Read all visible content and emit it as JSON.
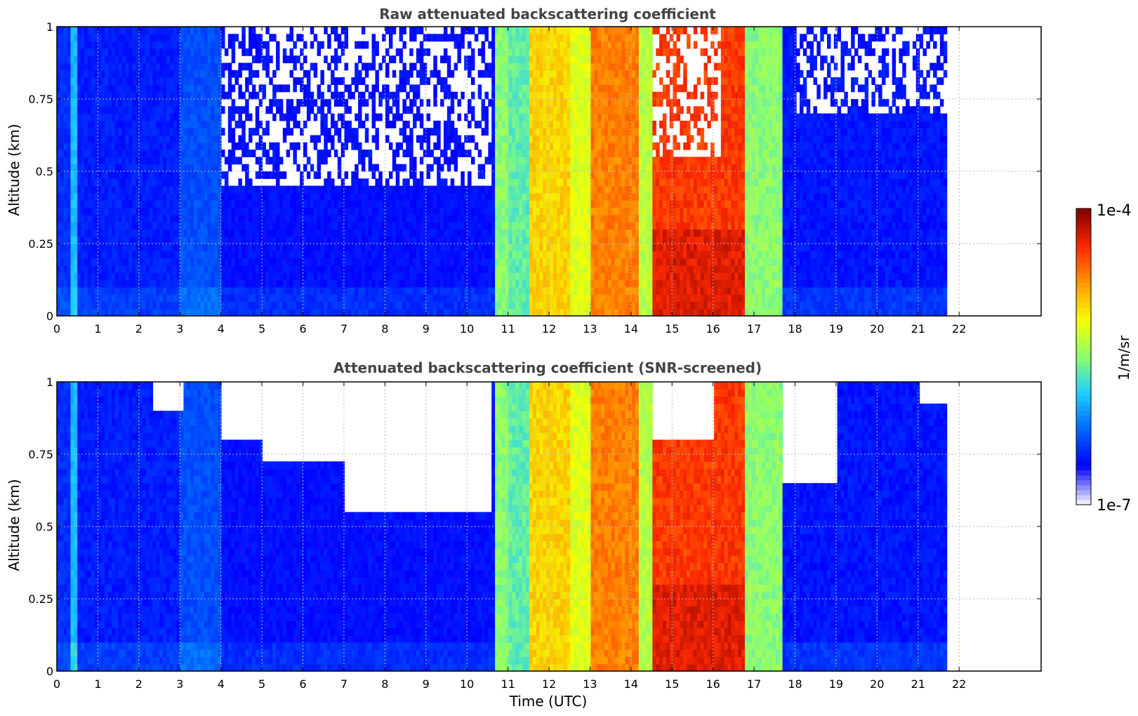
{
  "chart_data": [
    {
      "type": "heatmap",
      "title": "Raw attenuated backscattering coefficient",
      "xlabel": "",
      "ylabel": "Altitude (km)",
      "xlim": [
        0,
        24
      ],
      "ylim": [
        0,
        1
      ],
      "xticks": [
        "0",
        "1",
        "2",
        "3",
        "4",
        "5",
        "6",
        "7",
        "8",
        "9",
        "10",
        "11",
        "12",
        "13",
        "14",
        "15",
        "16",
        "17",
        "18",
        "19",
        "20",
        "21",
        "22"
      ],
      "yticks": [
        "0",
        "0.25",
        "0.5",
        "0.75",
        "1"
      ],
      "grid": true,
      "data_end_hour": 21.7,
      "regimes": [
        {
          "from": 0.0,
          "to": 0.3,
          "level": 0.18
        },
        {
          "from": 0.3,
          "to": 0.5,
          "level": 0.35
        },
        {
          "from": 0.5,
          "to": 3.0,
          "level": 0.16
        },
        {
          "from": 3.0,
          "to": 4.0,
          "level": 0.22
        },
        {
          "from": 4.0,
          "to": 10.7,
          "level": 0.14
        },
        {
          "from": 10.7,
          "to": 11.0,
          "level": 0.5
        },
        {
          "from": 11.0,
          "to": 11.5,
          "level": 0.45
        },
        {
          "from": 11.5,
          "to": 12.5,
          "level": 0.68
        },
        {
          "from": 12.5,
          "to": 13.0,
          "level": 0.6
        },
        {
          "from": 13.0,
          "to": 14.2,
          "level": 0.78
        },
        {
          "from": 14.2,
          "to": 14.5,
          "level": 0.55
        },
        {
          "from": 14.5,
          "to": 16.8,
          "level": 0.86
        },
        {
          "from": 16.8,
          "to": 17.7,
          "level": 0.5
        },
        {
          "from": 17.7,
          "to": 21.7,
          "level": 0.15
        }
      ],
      "clear_gaps": [
        {
          "from": 4.0,
          "to": 10.6,
          "above": 0.45
        },
        {
          "from": 14.5,
          "to": 16.2,
          "above": 0.55
        },
        {
          "from": 18.0,
          "to": 21.7,
          "above": 0.7
        }
      ],
      "colorbar": {
        "label": "1/m/sr",
        "min_label": "1e-7",
        "max_label": "1e-4"
      }
    },
    {
      "type": "heatmap",
      "title": "Attenuated backscattering coefficient (SNR-screened)",
      "xlabel": "Time (UTC)",
      "ylabel": "Altitude (km)",
      "xlim": [
        0,
        24
      ],
      "ylim": [
        0,
        1
      ],
      "xticks": [
        "0",
        "1",
        "2",
        "3",
        "4",
        "5",
        "6",
        "7",
        "8",
        "9",
        "10",
        "11",
        "12",
        "13",
        "14",
        "15",
        "16",
        "17",
        "18",
        "19",
        "20",
        "21",
        "22"
      ],
      "yticks": [
        "0",
        "0.25",
        "0.5",
        "0.75",
        "1"
      ],
      "grid": true,
      "data_end_hour": 21.7,
      "masked": [
        {
          "from": 2.3,
          "to": 3.1,
          "above": 0.9
        },
        {
          "from": 4.0,
          "to": 5.0,
          "above": 0.8
        },
        {
          "from": 5.0,
          "to": 7.0,
          "above": 0.72
        },
        {
          "from": 7.0,
          "to": 10.6,
          "above": 0.55
        },
        {
          "from": 14.5,
          "to": 16.0,
          "above": 0.8
        },
        {
          "from": 17.7,
          "to": 19.0,
          "above": 0.65
        },
        {
          "from": 21.0,
          "to": 21.7,
          "above": 0.93
        }
      ]
    }
  ],
  "colors": {
    "colormap": [
      "#ecebff",
      "#0000ff",
      "#0066ff",
      "#1ecfff",
      "#8cff6e",
      "#f5ff00",
      "#ff9a00",
      "#ff2a00",
      "#8a0000"
    ],
    "title": "#444444",
    "grid": "#bbbbbb"
  }
}
